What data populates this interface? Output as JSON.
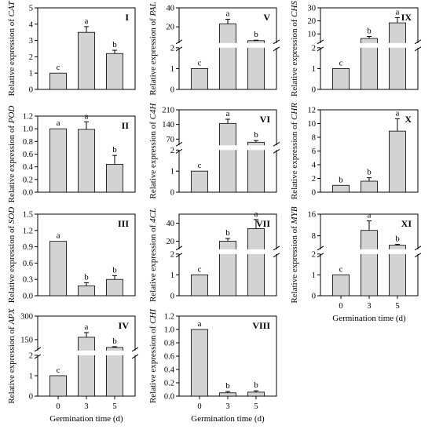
{
  "x_categories": [
    "0",
    "3",
    "5"
  ],
  "xlabel": "Germination time (d)",
  "colors": {
    "bar": "#d3d3d3",
    "stroke": "#000000"
  },
  "chart_data": [
    {
      "type": "bar",
      "panel": "I",
      "gene": "CAT",
      "ylabel_prefix": "Relative expression of ",
      "categories": [
        "0",
        "3",
        "5"
      ],
      "values": [
        1.0,
        3.5,
        2.2
      ],
      "errors": [
        0,
        0.35,
        0.2
      ],
      "letters": [
        "c",
        "a",
        "b"
      ],
      "ylim": [
        0,
        5
      ],
      "yticks": [
        "0",
        "1",
        "2",
        "3",
        "4",
        "5"
      ],
      "broken": false
    },
    {
      "type": "bar",
      "panel": "II",
      "gene": "POD",
      "ylabel_prefix": "Relative expression of ",
      "categories": [
        "0",
        "3",
        "5"
      ],
      "values": [
        1.0,
        0.99,
        0.44
      ],
      "errors": [
        0,
        0.12,
        0.14
      ],
      "letters": [
        "a",
        "a",
        "b"
      ],
      "ylim": [
        0,
        1.2
      ],
      "yticks": [
        "0.0",
        "0.2",
        "0.4",
        "0.6",
        "0.8",
        "1.0",
        "1.2"
      ],
      "broken": false
    },
    {
      "type": "bar",
      "panel": "III",
      "gene": "SOD",
      "ylabel_prefix": "Relative expression of ",
      "categories": [
        "0",
        "3",
        "5"
      ],
      "values": [
        1.0,
        0.18,
        0.3
      ],
      "errors": [
        0,
        0.06,
        0.07
      ],
      "letters": [
        "a",
        "b",
        "b"
      ],
      "ylim": [
        0,
        1.5
      ],
      "yticks": [
        "0.0",
        "0.3",
        "0.6",
        "0.9",
        "1.2",
        "1.5"
      ],
      "broken": false
    },
    {
      "type": "bar",
      "panel": "IV",
      "gene": "APX",
      "ylabel_prefix": "Relative expression of ",
      "categories": [
        "0",
        "3",
        "5"
      ],
      "values": [
        1.0,
        165,
        100
      ],
      "errors": [
        0,
        30,
        5
      ],
      "letters": [
        "c",
        "a",
        "b"
      ],
      "broken": true,
      "lower": {
        "ylim": [
          0,
          2
        ],
        "yticks": [
          "0",
          "1",
          "2"
        ]
      },
      "upper": {
        "ylim": [
          80,
          300
        ],
        "yticks": [
          "150",
          "300"
        ]
      }
    },
    {
      "type": "bar",
      "panel": "V",
      "gene": "PAL",
      "ylabel_prefix": "Relative expression of ",
      "categories": [
        "0",
        "3",
        "5"
      ],
      "values": [
        1.0,
        23,
        5.5
      ],
      "errors": [
        0,
        5,
        0.5
      ],
      "letters": [
        "c",
        "a",
        "b"
      ],
      "broken": true,
      "lower": {
        "ylim": [
          0,
          2
        ],
        "yticks": [
          "0",
          "1",
          "2"
        ]
      },
      "upper": {
        "ylim": [
          3,
          40
        ],
        "yticks": [
          "20",
          "40"
        ]
      }
    },
    {
      "type": "bar",
      "panel": "VI",
      "gene": "C4H",
      "ylabel_prefix": "Relative expression of ",
      "categories": [
        "0",
        "3",
        "5"
      ],
      "values": [
        1.0,
        145,
        55
      ],
      "errors": [
        0,
        20,
        8
      ],
      "letters": [
        "c",
        "a",
        "b"
      ],
      "broken": true,
      "lower": {
        "ylim": [
          0,
          2
        ],
        "yticks": [
          "0",
          "1",
          "2"
        ]
      },
      "upper": {
        "ylim": [
          40,
          210
        ],
        "yticks": [
          "70",
          "140",
          "210"
        ]
      }
    },
    {
      "type": "bar",
      "panel": "VII",
      "gene": "4CL",
      "ylabel_prefix": "Relative expression of ",
      "categories": [
        "0",
        "3",
        "5"
      ],
      "values": [
        1.0,
        20,
        34
      ],
      "errors": [
        0,
        3,
        10
      ],
      "letters": [
        "c",
        "b",
        "a"
      ],
      "broken": true,
      "lower": {
        "ylim": [
          0,
          2
        ],
        "yticks": [
          "0",
          "1",
          "2"
        ]
      },
      "upper": {
        "ylim": [
          11,
          50
        ],
        "yticks": [
          "20",
          "40"
        ]
      }
    },
    {
      "type": "bar",
      "panel": "VIII",
      "gene": "CHI",
      "ylabel_prefix": "Relative expression of ",
      "categories": [
        "0",
        "3",
        "5"
      ],
      "values": [
        1.0,
        0.05,
        0.06
      ],
      "errors": [
        0,
        0.02,
        0.02
      ],
      "letters": [
        "a",
        "b",
        "b"
      ],
      "ylim": [
        0,
        1.2
      ],
      "yticks": [
        "0.0",
        "0.2",
        "0.4",
        "0.6",
        "0.8",
        "1.0",
        "1.2"
      ],
      "broken": false
    },
    {
      "type": "bar",
      "panel": "IX",
      "gene": "CHS",
      "ylabel_prefix": "Relative expression of ",
      "categories": [
        "0",
        "3",
        "5"
      ],
      "values": [
        1.0,
        6.5,
        18.5
      ],
      "errors": [
        0,
        1.5,
        4
      ],
      "letters": [
        "c",
        "b",
        "a"
      ],
      "broken": true,
      "lower": {
        "ylim": [
          0,
          2
        ],
        "yticks": [
          "0",
          "1",
          "2"
        ]
      },
      "upper": {
        "ylim": [
          3,
          30
        ],
        "yticks": [
          "10",
          "20",
          "30"
        ]
      }
    },
    {
      "type": "bar",
      "panel": "X",
      "gene": "CHR",
      "ylabel_prefix": "Relative expression of ",
      "categories": [
        "0",
        "3",
        "5"
      ],
      "values": [
        1.0,
        1.6,
        8.9
      ],
      "errors": [
        0,
        0.5,
        1.8
      ],
      "letters": [
        "b",
        "b",
        "a"
      ],
      "ylim": [
        0,
        12
      ],
      "yticks": [
        "0",
        "2",
        "4",
        "6",
        "8",
        "10",
        "12"
      ],
      "broken": false
    },
    {
      "type": "bar",
      "panel": "XI",
      "gene": "MYB",
      "ylabel_prefix": "Relative expression of ",
      "categories": [
        "0",
        "3",
        "5"
      ],
      "values": [
        1.0,
        10,
        4.5
      ],
      "errors": [
        0,
        3.5,
        0.3
      ],
      "letters": [
        "c",
        "a",
        "b"
      ],
      "broken": true,
      "lower": {
        "ylim": [
          0,
          2
        ],
        "yticks": [
          "0",
          "1",
          "2"
        ]
      },
      "upper": {
        "ylim": [
          3,
          16
        ],
        "yticks": [
          "8",
          "16"
        ]
      }
    }
  ]
}
